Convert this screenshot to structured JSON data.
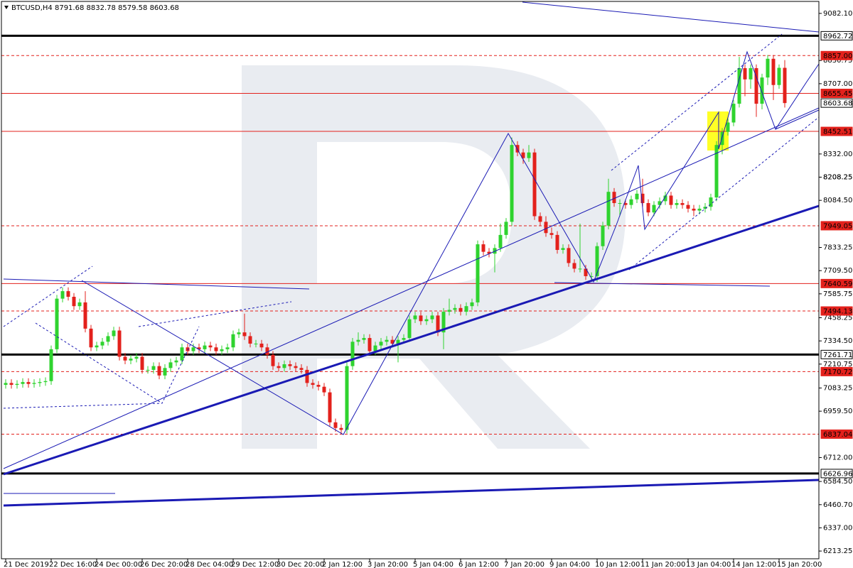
{
  "chart_data": {
    "type": "candlestick",
    "title": "BTCUSD,H4  8791.68 8832.78 8579.58 8603.68",
    "up_color": "#2fd32f",
    "down_color": "#e3211c",
    "ylim": [
      6172,
      9146
    ],
    "yticks": [
      {
        "value": 9082.1,
        "label": "9082.10"
      },
      8830.75,
      {
        "value": 8707,
        "label": "8707.00"
      },
      {
        "value": 8332,
        "label": "8332.00"
      },
      8208.25,
      {
        "value": 8084.5,
        "label": "8084.50"
      },
      8208.25,
      7833.25,
      {
        "value": 7709.5,
        "label": "7709.50"
      },
      7585.75,
      7458.25,
      {
        "value": 7334.5,
        "label": "7334.50"
      },
      7210.75,
      7083.25,
      {
        "value": 6959.5,
        "label": "6959.50"
      },
      {
        "value": 6712,
        "label": "6712.00"
      },
      {
        "value": 6584.5,
        "label": "6584.50"
      },
      {
        "value": 6460.7,
        "label": "6460.70"
      },
      {
        "value": 6337,
        "label": "6337.00"
      },
      6213.25
    ],
    "levels": [
      {
        "value": 8962.72,
        "color": "#000000",
        "style": "thick"
      },
      {
        "value": 8857,
        "label": "8857.00",
        "color": "#e3211c",
        "style": "dashed"
      },
      {
        "value": 8655.45,
        "color": "#e3211c",
        "style": "solid"
      },
      {
        "value": 8603.68,
        "color": "#000000",
        "style": "marker"
      },
      {
        "value": 8452.51,
        "color": "#e3211c",
        "style": "solid"
      },
      {
        "value": 7949.05,
        "color": "#e3211c",
        "style": "dashed"
      },
      {
        "value": 7640.59,
        "color": "#e3211c",
        "style": "solid"
      },
      {
        "value": 7494.13,
        "color": "#e3211c",
        "style": "dashed"
      },
      {
        "value": 7261.71,
        "color": "#000000",
        "style": "thick"
      },
      {
        "value": 7170.72,
        "color": "#e3211c",
        "style": "dashed"
      },
      {
        "value": 6837.04,
        "color": "#e3211c",
        "style": "dashed"
      },
      {
        "value": 6626.96,
        "color": "#000000",
        "style": "thick"
      }
    ],
    "categories": [
      "21 Dec 2019",
      null,
      null,
      null,
      null,
      null,
      null,
      null,
      "22 Dec 16:00",
      null,
      null,
      null,
      null,
      null,
      null,
      null,
      "24 Dec 00:00",
      null,
      null,
      null,
      null,
      null,
      null,
      null,
      "26 Dec 20:00",
      null,
      null,
      null,
      null,
      null,
      null,
      null,
      "28 Dec 04:00",
      null,
      null,
      null,
      null,
      null,
      null,
      null,
      "29 Dec 12:00",
      null,
      null,
      null,
      null,
      null,
      null,
      null,
      "30 Dec 20:00",
      null,
      null,
      null,
      null,
      null,
      null,
      null,
      "2 Jan 12:00",
      null,
      null,
      null,
      null,
      null,
      null,
      null,
      "3 Jan 20:00",
      null,
      null,
      null,
      null,
      null,
      null,
      null,
      "5 Jan 04:00",
      null,
      null,
      null,
      null,
      null,
      null,
      null,
      "6 Jan 12:00",
      null,
      null,
      null,
      null,
      null,
      null,
      null,
      "7 Jan 20:00",
      null,
      null,
      null,
      null,
      null,
      null,
      null,
      "9 Jan 04:00",
      null,
      null,
      null,
      null,
      null,
      null,
      null,
      "10 Jan 12:00",
      null,
      null,
      null,
      null,
      null,
      null,
      null,
      "11 Jan 20:00",
      null,
      null,
      null,
      null,
      null,
      null,
      null,
      "13 Jan 04:00",
      null,
      null,
      null,
      null,
      null,
      null,
      null,
      "14 Jan 12:00",
      null,
      null,
      null,
      null,
      null,
      null,
      null,
      "15 Jan 20:00",
      null
    ],
    "open": [
      7100,
      7110,
      7100,
      7105,
      7115,
      7105,
      7110,
      7115,
      7120,
      7290,
      7560,
      7600,
      7570,
      7520,
      7540,
      7400,
      7300,
      7310,
      7330,
      7360,
      7390,
      7250,
      7230,
      7240,
      7250,
      7180,
      7180,
      7200,
      7150,
      7190,
      7220,
      7230,
      7300,
      7280,
      7300,
      7290,
      7310,
      7300,
      7280,
      7290,
      7300,
      7370,
      7380,
      7360,
      7320,
      7320,
      7300,
      7260,
      7200,
      7190,
      7210,
      7200,
      7190,
      7180,
      7110,
      7100,
      7090,
      7060,
      6900,
      6870,
      6860,
      7200,
      7330,
      7340,
      7350,
      7280,
      7310,
      7330,
      7340,
      7320,
      7340,
      7350,
      7450,
      7470,
      7440,
      7450,
      7470,
      7380,
      7490,
      7500,
      7510,
      7490,
      7520,
      7540,
      7850,
      7810,
      7800,
      7830,
      7900,
      7970,
      8380,
      8340,
      8310,
      8340,
      8000,
      7970,
      7910,
      7900,
      7820,
      7830,
      7750,
      7720,
      7720,
      7680,
      7680,
      7840,
      7950,
      8130,
      8070,
      8070,
      8060,
      8090,
      8120,
      8070,
      8020,
      8060,
      8080,
      8110,
      8060,
      8070,
      8060,
      8040,
      8030,
      8040,
      8050,
      8100,
      8380,
      8450,
      8500,
      8600,
      8790,
      8730,
      8790,
      8600,
      8740,
      8840,
      8700,
      8791.68
    ],
    "high": [
      7130,
      7130,
      7125,
      7135,
      7135,
      7130,
      7135,
      7140,
      7310,
      7580,
      7620,
      7620,
      7590,
      7560,
      7600,
      7420,
      7330,
      7350,
      7380,
      7410,
      7410,
      7270,
      7260,
      7270,
      7270,
      7200,
      7220,
      7220,
      7210,
      7240,
      7250,
      7320,
      7320,
      7320,
      7320,
      7330,
      7330,
      7320,
      7310,
      7320,
      7390,
      7400,
      7480,
      7380,
      7340,
      7340,
      7320,
      7280,
      7220,
      7230,
      7230,
      7220,
      7210,
      7200,
      7130,
      7120,
      7110,
      7080,
      6920,
      6890,
      7220,
      7350,
      7380,
      7370,
      7370,
      7330,
      7350,
      7360,
      7360,
      7360,
      7370,
      7470,
      7490,
      7490,
      7470,
      7490,
      7490,
      7510,
      7560,
      7530,
      7530,
      7540,
      7560,
      7870,
      7870,
      7830,
      7850,
      7960,
      7990,
      8420,
      8400,
      8360,
      8380,
      8360,
      8020,
      8000,
      7940,
      7920,
      7850,
      7850,
      7770,
      7960,
      7740,
      7700,
      7860,
      7970,
      8200,
      8150,
      8090,
      8090,
      8110,
      8140,
      8200,
      8090,
      8080,
      8100,
      8130,
      8130,
      8090,
      8090,
      8080,
      8060,
      8060,
      8070,
      8120,
      8400,
      8470,
      8520,
      8620,
      8850,
      8810,
      8810,
      8810,
      8760,
      8860,
      8860,
      8810,
      8832.78
    ],
    "low": [
      7080,
      7080,
      7080,
      7085,
      7085,
      7085,
      7090,
      7095,
      7100,
      7270,
      7540,
      7550,
      7500,
      7500,
      7380,
      7280,
      7280,
      7290,
      7310,
      7340,
      7230,
      7210,
      7210,
      7220,
      7160,
      7160,
      7160,
      7130,
      7130,
      7170,
      7200,
      7210,
      7260,
      7260,
      7270,
      7270,
      7280,
      7260,
      7260,
      7270,
      7280,
      7350,
      7340,
      7300,
      7300,
      7280,
      7240,
      7180,
      7170,
      7170,
      7180,
      7170,
      7160,
      7090,
      7080,
      7070,
      7040,
      6880,
      6850,
      6837,
      6840,
      7180,
      7310,
      7320,
      7260,
      7260,
      7290,
      7310,
      7300,
      7220,
      7320,
      7330,
      7430,
      7420,
      7420,
      7430,
      7360,
      7290,
      7470,
      7480,
      7470,
      7470,
      7500,
      7520,
      7790,
      7780,
      7700,
      7810,
      7880,
      7950,
      8320,
      8280,
      8290,
      7980,
      7950,
      7890,
      7880,
      7800,
      7800,
      7730,
      7700,
      7700,
      7660,
      7650,
      7650,
      7820,
      7930,
      8050,
      8000,
      8040,
      8040,
      8070,
      8050,
      8000,
      8000,
      8040,
      8060,
      8040,
      8040,
      8040,
      8020,
      8000,
      8010,
      8020,
      8030,
      8080,
      8330,
      8430,
      8480,
      8580,
      8640,
      8680,
      8530,
      8570,
      8700,
      8620,
      8680,
      8579.58
    ],
    "close": [
      7110,
      7100,
      7105,
      7115,
      7105,
      7110,
      7115,
      7120,
      7290,
      7560,
      7600,
      7570,
      7520,
      7540,
      7400,
      7300,
      7310,
      7330,
      7360,
      7390,
      7250,
      7230,
      7240,
      7250,
      7180,
      7180,
      7200,
      7150,
      7190,
      7220,
      7230,
      7300,
      7280,
      7300,
      7290,
      7310,
      7300,
      7280,
      7290,
      7300,
      7370,
      7380,
      7360,
      7320,
      7320,
      7300,
      7260,
      7200,
      7190,
      7210,
      7200,
      7190,
      7180,
      7110,
      7100,
      7090,
      7060,
      6900,
      6870,
      6860,
      7200,
      7330,
      7340,
      7350,
      7280,
      7310,
      7330,
      7340,
      7320,
      7340,
      7350,
      7450,
      7470,
      7440,
      7450,
      7470,
      7380,
      7490,
      7500,
      7510,
      7490,
      7520,
      7540,
      7850,
      7810,
      7800,
      7830,
      7900,
      7970,
      8380,
      8340,
      8310,
      8340,
      8000,
      7970,
      7910,
      7900,
      7820,
      7830,
      7750,
      7720,
      7720,
      7680,
      7680,
      7840,
      7950,
      8130,
      8070,
      8070,
      8060,
      8090,
      8120,
      8070,
      8020,
      8060,
      8080,
      8110,
      8060,
      8070,
      8060,
      8040,
      8030,
      8040,
      8050,
      8100,
      8380,
      8450,
      8500,
      8600,
      8790,
      8730,
      8790,
      8600,
      8740,
      8840,
      8700,
      8791.68,
      8603.68
    ]
  }
}
